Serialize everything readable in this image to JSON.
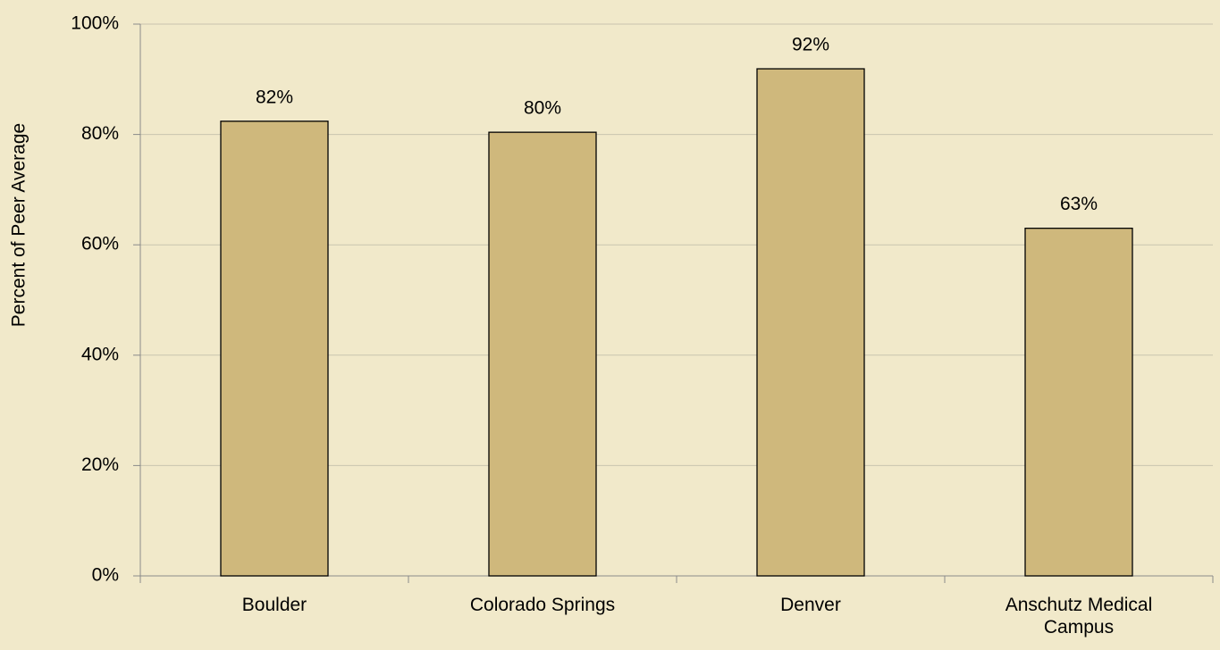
{
  "chart_data": {
    "type": "bar",
    "y_axis_label": "Percent of Peer Average",
    "categories": [
      "Boulder",
      "Colorado Springs",
      "Denver",
      "Anschutz Medical Campus"
    ],
    "values": [
      82.4,
      80.4,
      91.9,
      63
    ],
    "value_labels": [
      "82%",
      "80%",
      "92%",
      "63%"
    ],
    "color": "#cfb87c",
    "ylim": [
      0,
      100
    ],
    "yticks": [
      {
        "value": 0,
        "label": "0%"
      },
      {
        "value": 20,
        "label": "20%"
      },
      {
        "value": 40,
        "label": "40%"
      },
      {
        "value": 60,
        "label": "60%"
      },
      {
        "value": 80,
        "label": "80%"
      },
      {
        "value": 100,
        "label": "100%"
      }
    ],
    "grid": true
  }
}
